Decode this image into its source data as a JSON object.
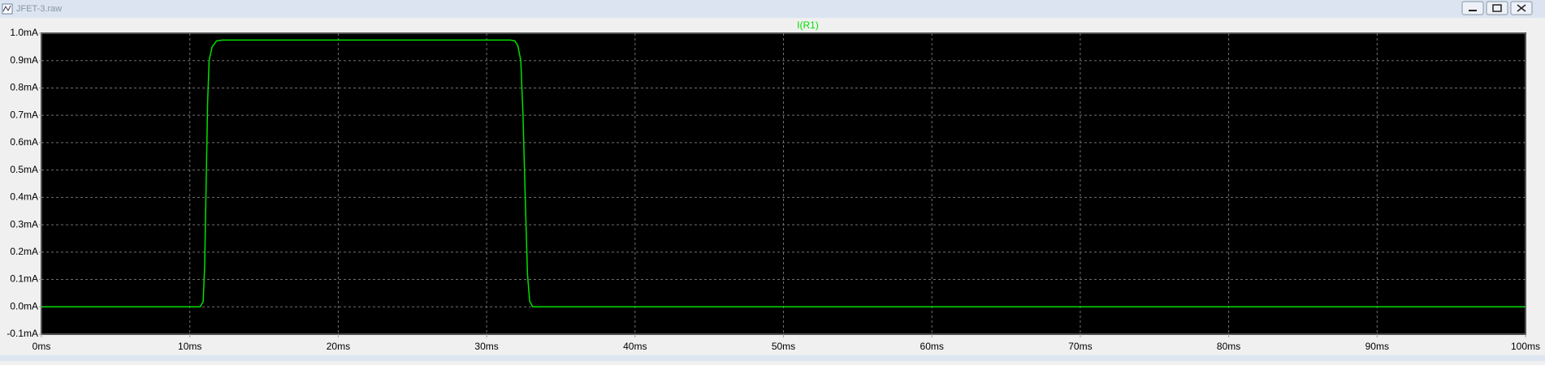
{
  "window": {
    "title": "JFET-3.raw"
  },
  "chart_data": {
    "type": "line",
    "x": [
      0,
      10.7,
      10.9,
      11.0,
      11.1,
      11.2,
      11.3,
      11.5,
      11.8,
      12.2,
      31.6,
      31.9,
      32.1,
      32.3,
      32.45,
      32.6,
      32.75,
      32.9,
      33.1,
      100
    ],
    "series": [
      {
        "name": "I(R1)",
        "color": "#00e000",
        "values": [
          0,
          0,
          0.02,
          0.15,
          0.45,
          0.75,
          0.9,
          0.95,
          0.972,
          0.975,
          0.975,
          0.972,
          0.955,
          0.9,
          0.7,
          0.4,
          0.12,
          0.02,
          0,
          0
        ]
      }
    ],
    "xlim": [
      0,
      100
    ],
    "xticks": [
      {
        "value": 0,
        "label": "0ms"
      },
      {
        "value": 10,
        "label": "10ms"
      },
      {
        "value": 20,
        "label": "20ms"
      },
      {
        "value": 30,
        "label": "30ms"
      },
      {
        "value": 40,
        "label": "40ms"
      },
      {
        "value": 50,
        "label": "50ms"
      },
      {
        "value": 60,
        "label": "60ms"
      },
      {
        "value": 70,
        "label": "70ms"
      },
      {
        "value": 80,
        "label": "80ms"
      },
      {
        "value": 90,
        "label": "90ms"
      },
      {
        "value": 100,
        "label": "100ms"
      }
    ],
    "ylim": [
      -0.1,
      1.0
    ],
    "yticks": [
      {
        "value": -0.1,
        "label": "-0.1mA"
      },
      {
        "value": 0.0,
        "label": "0.0mA"
      },
      {
        "value": 0.1,
        "label": "0.1mA"
      },
      {
        "value": 0.2,
        "label": "0.2mA"
      },
      {
        "value": 0.3,
        "label": "0.3mA"
      },
      {
        "value": 0.4,
        "label": "0.4mA"
      },
      {
        "value": 0.5,
        "label": "0.5mA"
      },
      {
        "value": 0.6,
        "label": "0.6mA"
      },
      {
        "value": 0.7,
        "label": "0.7mA"
      },
      {
        "value": 0.8,
        "label": "0.8mA"
      },
      {
        "value": 0.9,
        "label": "0.9mA"
      },
      {
        "value": 1.0,
        "label": "1.0mA"
      }
    ],
    "grid": true
  }
}
